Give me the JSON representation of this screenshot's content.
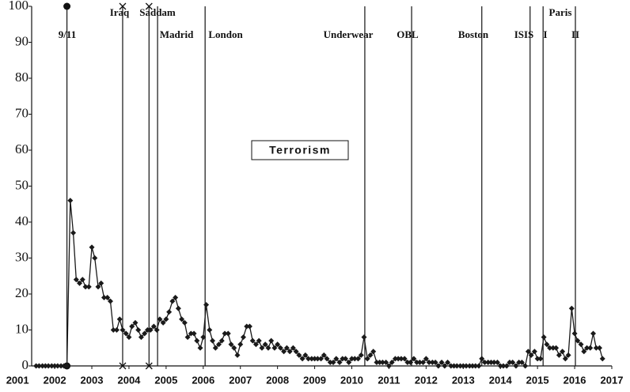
{
  "chart_data": {
    "type": "line",
    "x": [
      2001.5,
      2001.58,
      2001.67,
      2001.75,
      2001.83,
      2001.92,
      2002.0,
      2002.08,
      2002.17,
      2002.25,
      2002.33,
      2002.42,
      2002.5,
      2002.58,
      2002.67,
      2002.75,
      2002.83,
      2002.92,
      2003.0,
      2003.08,
      2003.17,
      2003.25,
      2003.33,
      2003.42,
      2003.5,
      2003.58,
      2003.67,
      2003.75,
      2003.83,
      2003.92,
      2004.0,
      2004.08,
      2004.17,
      2004.25,
      2004.33,
      2004.42,
      2004.5,
      2004.58,
      2004.67,
      2004.75,
      2004.83,
      2004.92,
      2005.0,
      2005.08,
      2005.17,
      2005.25,
      2005.33,
      2005.42,
      2005.5,
      2005.58,
      2005.67,
      2005.75,
      2005.83,
      2005.92,
      2006.0,
      2006.08,
      2006.17,
      2006.25,
      2006.33,
      2006.42,
      2006.5,
      2006.58,
      2006.67,
      2006.75,
      2006.83,
      2006.92,
      2007.0,
      2007.08,
      2007.17,
      2007.25,
      2007.33,
      2007.42,
      2007.5,
      2007.58,
      2007.67,
      2007.75,
      2007.83,
      2007.92,
      2008.0,
      2008.08,
      2008.17,
      2008.25,
      2008.33,
      2008.42,
      2008.5,
      2008.58,
      2008.67,
      2008.75,
      2008.83,
      2008.92,
      2009.0,
      2009.08,
      2009.17,
      2009.25,
      2009.33,
      2009.42,
      2009.5,
      2009.58,
      2009.67,
      2009.75,
      2009.83,
      2009.92,
      2010.0,
      2010.08,
      2010.17,
      2010.25,
      2010.33,
      2010.42,
      2010.5,
      2010.58,
      2010.67,
      2010.75,
      2010.83,
      2010.92,
      2011.0,
      2011.08,
      2011.17,
      2011.25,
      2011.33,
      2011.42,
      2011.5,
      2011.58,
      2011.67,
      2011.75,
      2011.83,
      2011.92,
      2012.0,
      2012.08,
      2012.17,
      2012.25,
      2012.33,
      2012.42,
      2012.5,
      2012.58,
      2012.67,
      2012.75,
      2012.83,
      2012.92,
      2013.0,
      2013.08,
      2013.17,
      2013.25,
      2013.33,
      2013.42,
      2013.5,
      2013.58,
      2013.67,
      2013.75,
      2013.83,
      2013.92,
      2014.0,
      2014.08,
      2014.17,
      2014.25,
      2014.33,
      2014.42,
      2014.5,
      2014.58,
      2014.67,
      2014.75,
      2014.83,
      2014.92,
      2015.0,
      2015.08,
      2015.17,
      2015.25,
      2015.33,
      2015.42,
      2015.5,
      2015.58,
      2015.67,
      2015.75,
      2015.83,
      2015.92,
      2016.0,
      2016.08,
      2016.17,
      2016.25,
      2016.33,
      2016.42,
      2016.5,
      2016.58,
      2016.67,
      2016.75
    ],
    "series": [
      {
        "name": "Terrorism",
        "color": "#1a1a1a",
        "values": [
          0,
          0,
          0,
          0,
          0,
          0,
          0,
          0,
          0,
          0,
          0,
          46,
          37,
          24,
          23,
          24,
          22,
          22,
          33,
          30,
          22,
          23,
          19,
          19,
          18,
          10,
          10,
          13,
          10,
          9,
          8,
          11,
          12,
          10,
          8,
          9,
          10,
          10,
          11,
          10,
          13,
          12,
          13,
          15,
          18,
          19,
          16,
          13,
          12,
          8,
          9,
          9,
          7,
          5,
          8,
          17,
          10,
          7,
          5,
          6,
          7,
          9,
          9,
          6,
          5,
          3,
          6,
          8,
          11,
          11,
          7,
          6,
          7,
          5,
          6,
          5,
          7,
          5,
          6,
          5,
          4,
          5,
          4,
          5,
          4,
          3,
          2,
          3,
          2,
          2,
          2,
          2,
          2,
          3,
          2,
          1,
          1,
          2,
          1,
          2,
          2,
          1,
          2,
          2,
          2,
          3,
          8,
          2,
          3,
          4,
          1,
          1,
          1,
          1,
          0,
          1,
          2,
          2,
          2,
          2,
          1,
          1,
          2,
          1,
          1,
          1,
          2,
          1,
          1,
          1,
          0,
          1,
          0,
          1,
          0,
          0,
          0,
          0,
          0,
          0,
          0,
          0,
          0,
          0,
          2,
          1,
          1,
          1,
          1,
          1,
          0,
          0,
          0,
          1,
          1,
          0,
          1,
          1,
          0,
          4,
          3,
          4,
          2,
          2,
          8,
          6,
          5,
          5,
          5,
          3,
          4,
          2,
          3,
          16,
          9,
          7,
          6,
          4,
          5,
          5,
          9,
          5,
          5,
          2
        ]
      }
    ],
    "events": [
      {
        "label": "9/11",
        "x": 2002.33,
        "marker": "dot"
      },
      {
        "label": "Iraq",
        "x": 2003.83,
        "marker": "x"
      },
      {
        "label": "Saddam",
        "x": 2004.54,
        "marker": "x"
      },
      {
        "label": "Madrid",
        "x": 2004.77
      },
      {
        "label": "London",
        "x": 2006.05
      },
      {
        "label": "Underwear",
        "x": 2010.35
      },
      {
        "label": "OBL",
        "x": 2011.61
      },
      {
        "label": "Boston",
        "x": 2013.5
      },
      {
        "label": "ISIS",
        "x": 2014.8
      },
      {
        "label": "I",
        "x": 2015.15
      },
      {
        "label": "II",
        "x": 2016.02
      }
    ],
    "annotations": [
      "Paris"
    ],
    "xlim": [
      2001.38,
      2017.0
    ],
    "xticks": [
      2001,
      2002,
      2003,
      2004,
      2005,
      2006,
      2007,
      2008,
      2009,
      2010,
      2011,
      2012,
      2013,
      2014,
      2015,
      2016,
      2017
    ],
    "ylim": [
      0,
      100
    ],
    "yticks": [
      0,
      10,
      20,
      30,
      40,
      50,
      60,
      70,
      80,
      90,
      100
    ],
    "grid": false
  }
}
